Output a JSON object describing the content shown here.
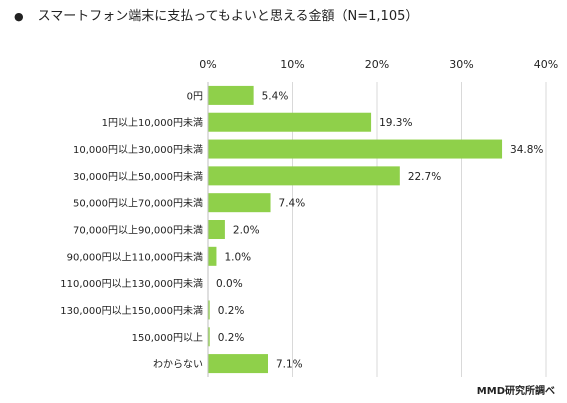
{
  "title": "スマートフォン端末に支払ってもよいと思える金額（N=1,105）",
  "bullet": "●",
  "source": "MMD研究所調べ",
  "colors": {
    "bar": "#8fd04a",
    "grid": "#d9d9d9",
    "text": "#222222"
  },
  "chart_data": {
    "type": "bar",
    "orientation": "horizontal",
    "title": "スマートフォン端末に支払ってもよいと思える金額（N=1,105）",
    "categories": [
      "0円",
      "1円以上10,000円未満",
      "10,000円以上30,000円未満",
      "30,000円以上50,000円未満",
      "50,000円以上70,000円未満",
      "70,000円以上90,000円未満",
      "90,000円以上110,000円未満",
      "110,000円以上130,000円未満",
      "130,000円以上150,000円未満",
      "150,000円以上",
      "わからない"
    ],
    "values": [
      5.4,
      19.3,
      34.8,
      22.7,
      7.4,
      2.0,
      1.0,
      0.0,
      0.2,
      0.2,
      7.1
    ],
    "value_labels": [
      "5.4%",
      "19.3%",
      "34.8%",
      "22.7%",
      "7.4%",
      "2.0%",
      "1.0%",
      "0.0%",
      "0.2%",
      "0.2%",
      "7.1%"
    ],
    "xlim": [
      0,
      40
    ],
    "ticks": [
      0,
      10,
      20,
      30,
      40
    ],
    "tick_labels": [
      "0%",
      "10%",
      "20%",
      "30%",
      "40%"
    ],
    "xlabel": "",
    "ylabel": "",
    "grid": true,
    "legend": "none"
  }
}
